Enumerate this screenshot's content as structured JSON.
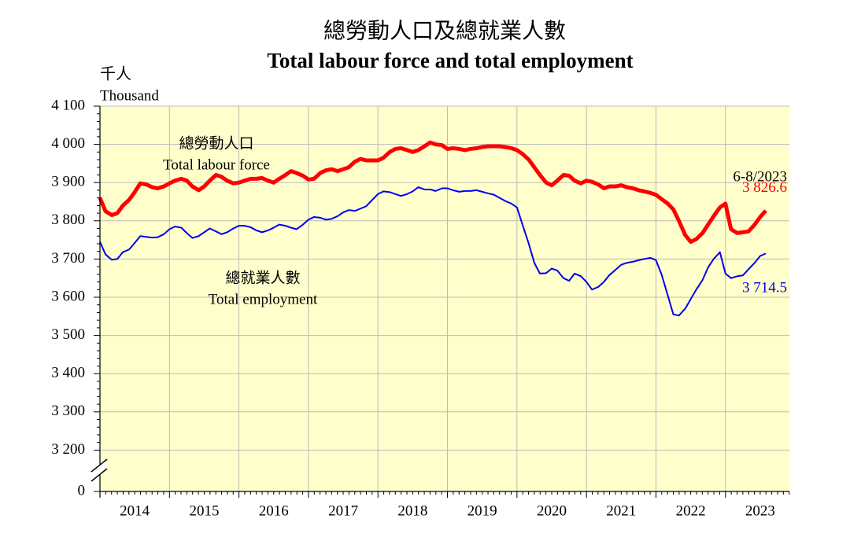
{
  "chart_data": {
    "type": "line",
    "title": "總勞動人口及總就業人數",
    "subtitle": "Total labour force and total employment",
    "y_unit_zh": "千人",
    "y_unit": "Thousand",
    "period_label": "6-8/2023",
    "x": [
      2014,
      2014.08,
      2014.17,
      2014.25,
      2014.33,
      2014.42,
      2014.5,
      2014.58,
      2014.67,
      2014.75,
      2014.83,
      2014.92,
      2015,
      2015.08,
      2015.17,
      2015.25,
      2015.33,
      2015.42,
      2015.5,
      2015.58,
      2015.67,
      2015.75,
      2015.83,
      2015.92,
      2016,
      2016.08,
      2016.17,
      2016.25,
      2016.33,
      2016.42,
      2016.5,
      2016.58,
      2016.67,
      2016.75,
      2016.83,
      2016.92,
      2017,
      2017.08,
      2017.17,
      2017.25,
      2017.33,
      2017.42,
      2017.5,
      2017.58,
      2017.67,
      2017.75,
      2017.83,
      2017.92,
      2018,
      2018.08,
      2018.17,
      2018.25,
      2018.33,
      2018.42,
      2018.5,
      2018.58,
      2018.67,
      2018.75,
      2018.83,
      2018.92,
      2019,
      2019.08,
      2019.17,
      2019.25,
      2019.33,
      2019.42,
      2019.5,
      2019.58,
      2019.67,
      2019.75,
      2019.83,
      2019.92,
      2020,
      2020.08,
      2020.17,
      2020.25,
      2020.33,
      2020.42,
      2020.5,
      2020.58,
      2020.67,
      2020.75,
      2020.83,
      2020.92,
      2021,
      2021.08,
      2021.17,
      2021.25,
      2021.33,
      2021.42,
      2021.5,
      2021.58,
      2021.67,
      2021.75,
      2021.83,
      2021.92,
      2022,
      2022.08,
      2022.17,
      2022.25,
      2022.33,
      2022.42,
      2022.5,
      2022.58,
      2022.67,
      2022.75,
      2022.83,
      2022.92,
      2023,
      2023.08,
      2023.17,
      2023.25,
      2023.33,
      2023.42,
      2023.5,
      2023.58
    ],
    "series": [
      {
        "name": "Total labour force",
        "name_zh": "總勞動人口",
        "color": "#ff0000",
        "width": 5,
        "values": [
          3860,
          3825,
          3815,
          3820,
          3840,
          3855,
          3875,
          3898,
          3895,
          3888,
          3885,
          3890,
          3898,
          3905,
          3910,
          3905,
          3890,
          3880,
          3890,
          3905,
          3920,
          3915,
          3905,
          3898,
          3900,
          3905,
          3910,
          3910,
          3912,
          3905,
          3900,
          3910,
          3920,
          3930,
          3925,
          3918,
          3908,
          3910,
          3925,
          3932,
          3935,
          3930,
          3935,
          3940,
          3955,
          3962,
          3958,
          3958,
          3958,
          3965,
          3980,
          3988,
          3990,
          3985,
          3980,
          3985,
          3995,
          4005,
          4000,
          3998,
          3988,
          3990,
          3988,
          3985,
          3988,
          3990,
          3993,
          3995,
          3995,
          3995,
          3993,
          3990,
          3985,
          3975,
          3960,
          3940,
          3920,
          3900,
          3893,
          3905,
          3920,
          3918,
          3905,
          3898,
          3905,
          3902,
          3895,
          3885,
          3890,
          3890,
          3893,
          3888,
          3885,
          3880,
          3877,
          3873,
          3868,
          3857,
          3845,
          3830,
          3800,
          3763,
          3745,
          3752,
          3768,
          3790,
          3812,
          3835,
          3845,
          3778,
          3768,
          3770,
          3772,
          3790,
          3810,
          3826.6
        ],
        "value_labels": {
          "115": "3 826.6"
        }
      },
      {
        "name": "Total employment",
        "name_zh": "總就業人數",
        "color": "#0000ee",
        "width": 2,
        "values": [
          3745,
          3712,
          3698,
          3700,
          3718,
          3725,
          3742,
          3760,
          3758,
          3756,
          3757,
          3765,
          3778,
          3785,
          3782,
          3768,
          3755,
          3760,
          3770,
          3780,
          3772,
          3765,
          3770,
          3780,
          3787,
          3787,
          3783,
          3775,
          3770,
          3775,
          3782,
          3790,
          3787,
          3782,
          3778,
          3790,
          3803,
          3810,
          3808,
          3803,
          3805,
          3812,
          3822,
          3828,
          3826,
          3832,
          3838,
          3855,
          3870,
          3877,
          3875,
          3870,
          3865,
          3870,
          3877,
          3888,
          3882,
          3882,
          3878,
          3885,
          3885,
          3880,
          3876,
          3878,
          3878,
          3880,
          3876,
          3872,
          3868,
          3860,
          3852,
          3845,
          3835,
          3790,
          3740,
          3690,
          3662,
          3663,
          3675,
          3670,
          3650,
          3643,
          3662,
          3655,
          3640,
          3620,
          3627,
          3640,
          3658,
          3672,
          3685,
          3690,
          3693,
          3697,
          3700,
          3703,
          3697,
          3660,
          3605,
          3555,
          3552,
          3570,
          3595,
          3620,
          3645,
          3678,
          3700,
          3718,
          3662,
          3650,
          3655,
          3657,
          3673,
          3690,
          3708,
          3714.5
        ],
        "value_labels": {
          "115": "3 714.5"
        }
      }
    ],
    "xlim": [
      2014,
      2023.92
    ],
    "xticks": [
      2014,
      2015,
      2016,
      2017,
      2018,
      2019,
      2020,
      2021,
      2022,
      2023
    ],
    "ylim": [
      0,
      4100
    ],
    "y_axis_break": [
      0,
      3100
    ],
    "yticks": [
      {
        "value": 0,
        "label": "0"
      },
      {
        "value": 3200,
        "label": "3 200"
      },
      {
        "value": 3300,
        "label": "3 300"
      },
      {
        "value": 3400,
        "label": "3 400"
      },
      {
        "value": 3500,
        "label": "3 500"
      },
      {
        "value": 3600,
        "label": "3 600"
      },
      {
        "value": 3700,
        "label": "3 700"
      },
      {
        "value": 3800,
        "label": "3 800"
      },
      {
        "value": 3900,
        "label": "3 900"
      },
      {
        "value": 4000,
        "label": "4 000"
      },
      {
        "value": 4100,
        "label": "4 100"
      }
    ],
    "grid": true,
    "background": "#ffffcc"
  }
}
